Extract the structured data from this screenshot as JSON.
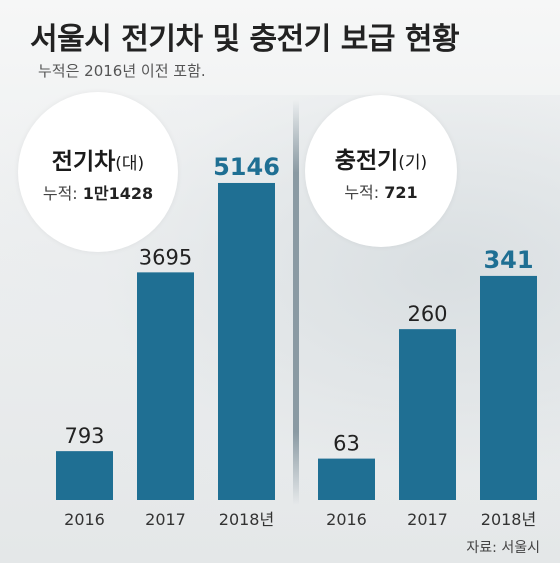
{
  "title": "서울시 전기차 및 충전기 보급 현황",
  "subtitle": "누적은 2016년 이전 포함.",
  "source": "자료: 서울시",
  "colors": {
    "bar": "#1f6f93",
    "text": "#1a1a1a",
    "label": "#333333"
  },
  "chart_data": [
    {
      "type": "bar",
      "title": "전기차",
      "unit": "(대)",
      "cumulative_label": "누적: ",
      "cumulative_value": "1만1428",
      "categories": [
        "2016",
        "2017",
        "2018년"
      ],
      "values": [
        793,
        3695,
        5146
      ],
      "ylim": [
        0,
        5600
      ]
    },
    {
      "type": "bar",
      "title": "충전기",
      "unit": "(기)",
      "cumulative_label": "누적: ",
      "cumulative_value": "721",
      "categories": [
        "2016",
        "2017",
        "2018년"
      ],
      "values": [
        63,
        260,
        341
      ],
      "ylim": [
        0,
        525
      ]
    }
  ]
}
